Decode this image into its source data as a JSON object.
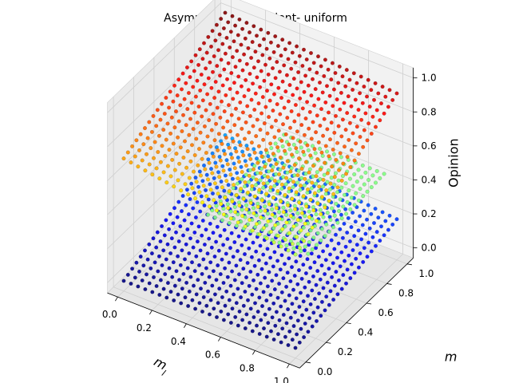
{
  "chart_data": {
    "type": "scatter3d",
    "title": "Asymmetric Dependent- uniform",
    "xlabel": "m_l",
    "ylabel": "m",
    "zlabel": "Opinion",
    "xlim": [
      0,
      1
    ],
    "ylim": [
      0,
      1
    ],
    "zlim": [
      0,
      1
    ],
    "x_ticks": [
      "0.0",
      "0.2",
      "0.4",
      "0.6",
      "0.8",
      "1.0"
    ],
    "y_ticks": [
      "0.0",
      "0.2",
      "0.4",
      "0.6",
      "0.8",
      "1.0"
    ],
    "z_ticks": [
      "0.0",
      "0.2",
      "0.4",
      "0.6",
      "0.8",
      "1.0"
    ],
    "colormap": "jet",
    "grid": true,
    "surfaces": [
      {
        "plane": "high",
        "z_at_x0_y0": 0.72,
        "z_at_x1_y0": 0.55,
        "z_at_x0_y1": 1.0,
        "z_at_x1_y1": 0.92,
        "color_by": "z"
      },
      {
        "plane": "low",
        "z_at_x0_y0": 0.0,
        "z_at_x1_y0": 0.0,
        "z_at_x0_y1": 0.28,
        "z_at_x1_y1": 0.18,
        "color_by": "z"
      },
      {
        "plane": "mid",
        "z_value": 0.5,
        "x_range": [
          0.4,
          1.0
        ],
        "y_range": [
          0.1,
          0.9
        ],
        "color": "#7fff7f"
      }
    ]
  }
}
